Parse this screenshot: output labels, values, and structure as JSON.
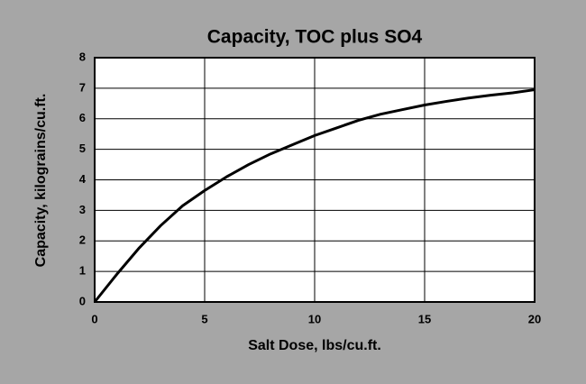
{
  "chart_data": {
    "type": "line",
    "title": "Capacity, TOC plus SO4",
    "x_label": "Salt Dose, lbs/cu.ft.",
    "y_label": "Capacity, kilograins/cu.ft.",
    "series": [
      {
        "name": "Capacity",
        "color": "#000000",
        "x": [
          0,
          1,
          2,
          3,
          4,
          5,
          6,
          7,
          8,
          9,
          10,
          11,
          12,
          13,
          14,
          15,
          16,
          17,
          18,
          19,
          20
        ],
        "values": [
          0,
          0.9,
          1.75,
          2.5,
          3.15,
          3.65,
          4.1,
          4.5,
          4.85,
          5.15,
          5.45,
          5.7,
          5.95,
          6.15,
          6.3,
          6.45,
          6.57,
          6.68,
          6.77,
          6.85,
          6.95
        ]
      }
    ],
    "xlim": [
      0,
      20
    ],
    "xticks": [
      0,
      5,
      10,
      15,
      20
    ],
    "ylim": [
      0,
      8
    ],
    "yticks": [
      0,
      1,
      2,
      3,
      4,
      5,
      6,
      7,
      8
    ],
    "grid": true
  }
}
